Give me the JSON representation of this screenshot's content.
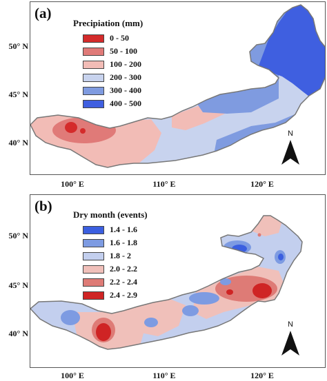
{
  "panels": [
    {
      "label": "(a)",
      "legend_title": "Precipiation (mm)",
      "legend": [
        {
          "label": "0 - 50",
          "color": "#d42b2b"
        },
        {
          "label": "50 - 100",
          "color": "#e07a78"
        },
        {
          "label": "100 - 200",
          "color": "#f2bcb6"
        },
        {
          "label": "200 - 300",
          "color": "#c8d3ee"
        },
        {
          "label": "300 - 400",
          "color": "#7f9be0"
        },
        {
          "label": "400 - 500",
          "color": "#3f5fe0"
        }
      ],
      "y_ticks": [
        "50° N",
        "45° N",
        "40° N"
      ],
      "x_ticks": [
        "100° E",
        "110° E",
        "120° E"
      ],
      "north_label": "N"
    },
    {
      "label": "(b)",
      "legend_title": "Dry month (events)",
      "legend": [
        {
          "label": "1.4 - 1.6",
          "color": "#3b5fe0"
        },
        {
          "label": "1.6 - 1.8",
          "color": "#7d9be2"
        },
        {
          "label": "1.8 - 2",
          "color": "#c3cfee"
        },
        {
          "label": "2.0 - 2.2",
          "color": "#f0c0ba"
        },
        {
          "label": "2.2 - 2.4",
          "color": "#de7b76"
        },
        {
          "label": "2.4 - 2.9",
          "color": "#cf2424"
        }
      ],
      "y_ticks": [
        "50° N",
        "45° N",
        "40° N"
      ],
      "x_ticks": [
        "100° E",
        "110° E",
        "120° E"
      ],
      "north_label": "N"
    }
  ]
}
